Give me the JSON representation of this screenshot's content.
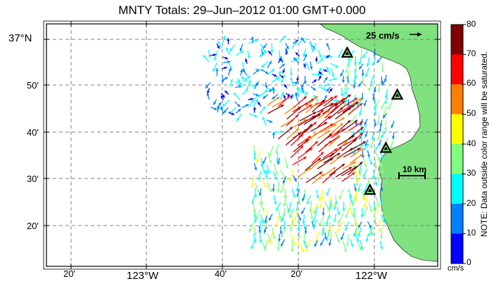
{
  "title": "MNTY Totals: 29–Jun–2012 01:00 GMT+0.000",
  "lat_labels": [
    {
      "text": "37°N",
      "lat": 37.0
    },
    {
      "text": "50'",
      "lat": 36.8333
    },
    {
      "text": "40'",
      "lat": 36.6667
    },
    {
      "text": "30'",
      "lat": 36.5
    },
    {
      "text": "20'",
      "lat": 36.3333
    }
  ],
  "lon_labels": [
    {
      "text": "20'",
      "lon": -123.3333
    },
    {
      "text": "123°W",
      "lon": -123.0
    },
    {
      "text": "40'",
      "lon": -122.6667
    },
    {
      "text": "20'",
      "lon": -122.3333
    },
    {
      "text": "122°W",
      "lon": -122.0
    }
  ],
  "vector_scale_label": "25 cm/s",
  "distance_scale_label": "10 km",
  "colorbar": {
    "ticks": [
      "80",
      "70",
      "60",
      "50",
      "40",
      "30",
      "20",
      "10",
      "0"
    ],
    "colors": [
      "#7f0000",
      "#ff0000",
      "#ff7f00",
      "#ffff00",
      "#80ff80",
      "#00ffff",
      "#0080ff",
      "#0000ff"
    ],
    "units": "cm/s",
    "note": "NOTE: Data outside color range will be saturated."
  },
  "colors": {
    "land": "#7fe27f",
    "grid": "#7f7f7f",
    "station": "#000000"
  },
  "stations": [
    {
      "lon": -122.12,
      "lat": 36.95
    },
    {
      "lon": -121.9,
      "lat": 36.8
    },
    {
      "lon": -121.95,
      "lat": 36.61
    },
    {
      "lon": -122.02,
      "lat": 36.46
    }
  ],
  "current_field": [
    {
      "region": "north-west",
      "speed_range_cms": [
        5,
        30
      ],
      "direction": "variable, mostly east-southeast"
    },
    {
      "region": "central jet off Monterey Bay",
      "speed_range_cms": [
        50,
        80
      ],
      "direction": "northeast"
    },
    {
      "region": "bay interior",
      "speed_range_cms": [
        10,
        35
      ],
      "direction": "south-southwest"
    },
    {
      "region": "south",
      "speed_range_cms": [
        15,
        45
      ],
      "direction": "south"
    }
  ]
}
